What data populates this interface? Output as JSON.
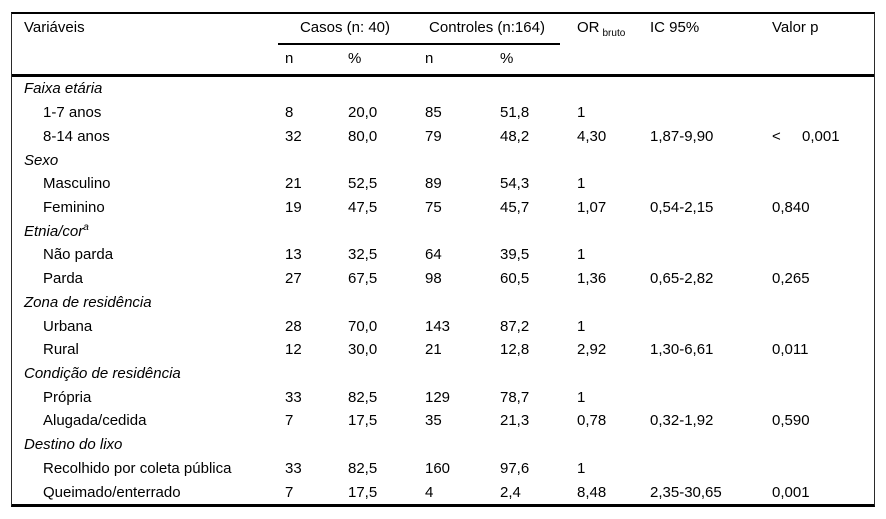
{
  "colors": {
    "background": "#ffffff",
    "text": "#000000",
    "rule": "#000000"
  },
  "table": {
    "header": {
      "variables_label": "Variáveis",
      "casos_label": "Casos (n: 40)",
      "controles_label": "Controles (n:164)",
      "or_label": "OR",
      "or_sub_label": "bruto",
      "ic_label": "IC 95%",
      "p_label": "Valor p",
      "subheader": [
        "n",
        "%",
        "n",
        "%"
      ]
    },
    "rows": [
      {
        "type": "group",
        "label": "Faixa etária"
      },
      {
        "type": "item",
        "label": "1-7 anos",
        "n_casos": "8",
        "pct_casos": "20,0",
        "n_controles": "85",
        "pct_controles": "51,8",
        "or": "1",
        "ic": "",
        "p": ""
      },
      {
        "type": "item",
        "label": "8-14 anos",
        "n_casos": "32",
        "pct_casos": "80,0",
        "n_controles": "79",
        "pct_controles": "48,2",
        "or": "4,30",
        "ic": "1,87-9,90",
        "p_prefix": "<",
        "p": "0,001"
      },
      {
        "type": "group",
        "label": "Sexo"
      },
      {
        "type": "item",
        "label": "Masculino",
        "n_casos": "21",
        "pct_casos": "52,5",
        "n_controles": "89",
        "pct_controles": "54,3",
        "or": "1",
        "ic": "",
        "p": ""
      },
      {
        "type": "item",
        "label": "Feminino",
        "n_casos": "19",
        "pct_casos": "47,5",
        "n_controles": "75",
        "pct_controles": "45,7",
        "or": "1,07",
        "ic": "0,54-2,15",
        "p": "0,840"
      },
      {
        "type": "group",
        "label": "Etnia/cor",
        "sup": "a"
      },
      {
        "type": "item",
        "label": "Não parda",
        "n_casos": "13",
        "pct_casos": "32,5",
        "n_controles": "64",
        "pct_controles": "39,5",
        "or": "1",
        "ic": "",
        "p": ""
      },
      {
        "type": "item",
        "label": "Parda",
        "n_casos": "27",
        "pct_casos": "67,5",
        "n_controles": "98",
        "pct_controles": "60,5",
        "or": "1,36",
        "ic": "0,65-2,82",
        "p": "0,265"
      },
      {
        "type": "group",
        "label": "Zona de residência"
      },
      {
        "type": "item",
        "label": "Urbana",
        "n_casos": "28",
        "pct_casos": "70,0",
        "n_controles": "143",
        "pct_controles": "87,2",
        "or": "1",
        "ic": "",
        "p": ""
      },
      {
        "type": "item",
        "label": "Rural",
        "n_casos": "12",
        "pct_casos": "30,0",
        "n_controles": "21",
        "pct_controles": "12,8",
        "or": "2,92",
        "ic": "1,30-6,61",
        "p": "0,011"
      },
      {
        "type": "group",
        "label": "Condição de residência"
      },
      {
        "type": "item",
        "label": "Própria",
        "n_casos": "33",
        "pct_casos": "82,5",
        "n_controles": "129",
        "pct_controles": "78,7",
        "or": "1",
        "ic": "",
        "p": ""
      },
      {
        "type": "item",
        "label": "Alugada/cedida",
        "n_casos": "7",
        "pct_casos": "17,5",
        "n_controles": "35",
        "pct_controles": "21,3",
        "or": "0,78",
        "ic": "0,32-1,92",
        "p": "0,590"
      },
      {
        "type": "group",
        "label": "Destino do lixo"
      },
      {
        "type": "item",
        "label": "Recolhido por coleta pública",
        "n_casos": "33",
        "pct_casos": "82,5",
        "n_controles": "160",
        "pct_controles": "97,6",
        "or": "1",
        "ic": "",
        "p": ""
      },
      {
        "type": "item",
        "label": "Queimado/enterrado",
        "n_casos": "7",
        "pct_casos": "17,5",
        "n_controles": "4",
        "pct_controles": "2,4",
        "or": "8,48",
        "ic": "2,35-30,65",
        "p": "0,001"
      }
    ]
  }
}
